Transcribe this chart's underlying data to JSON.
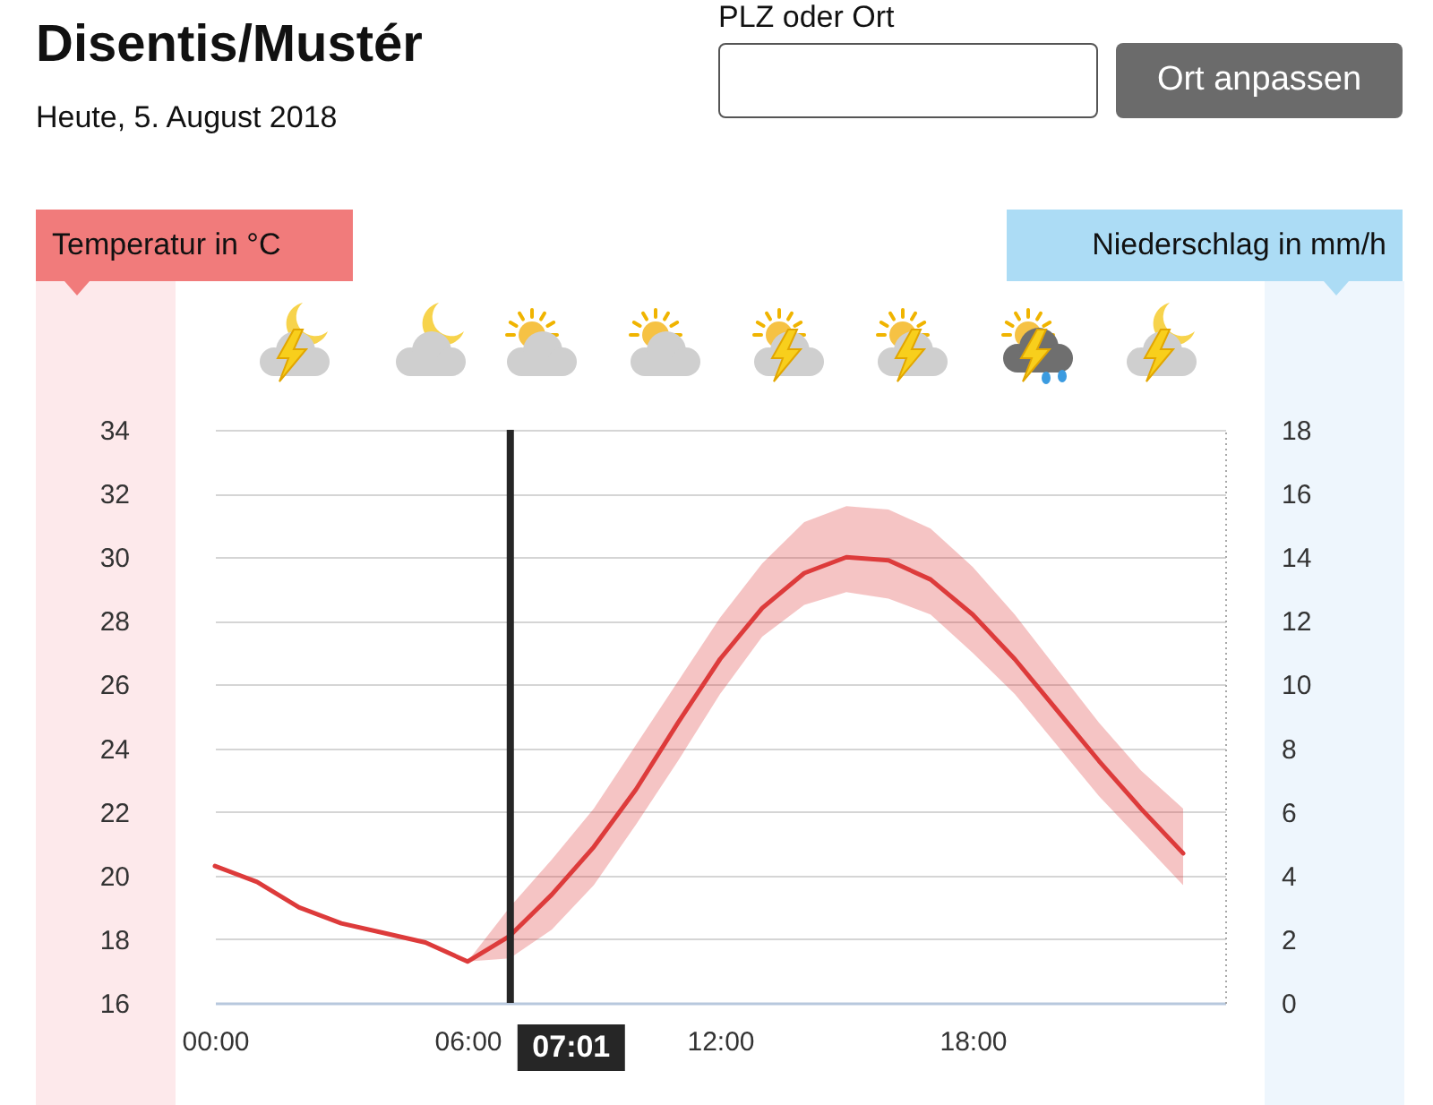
{
  "chart_data": {
    "type": "line",
    "title": "Disentis/Mustér",
    "subtitle": "Heute, 5. August 2018",
    "annotations": [
      "PLZ oder Ort",
      "Ort anpassen",
      "Temperatur in °C",
      "Niederschlag in mm/h"
    ],
    "x": [
      0,
      1,
      2,
      3,
      4,
      5,
      6,
      7,
      8,
      9,
      10,
      11,
      12,
      13,
      14,
      15,
      16,
      17,
      18,
      19,
      20,
      21,
      22,
      23
    ],
    "series": [
      {
        "color": "#dd3b3b",
        "values": [
          20.3,
          19.8,
          19.0,
          18.5,
          18.2,
          17.9,
          17.3,
          18.1,
          19.4,
          20.9,
          22.7,
          24.8,
          26.8,
          28.4,
          29.5,
          30.0,
          29.9,
          29.3,
          28.2,
          26.8,
          25.2,
          23.6,
          22.1,
          20.7
        ],
        "lower": [
          null,
          null,
          null,
          null,
          null,
          null,
          17.3,
          17.4,
          18.3,
          19.7,
          21.6,
          23.6,
          25.7,
          27.5,
          28.5,
          28.9,
          28.7,
          28.2,
          27.0,
          25.7,
          24.1,
          22.5,
          21.1,
          19.7
        ],
        "upper": [
          null,
          null,
          null,
          null,
          null,
          null,
          17.3,
          19.0,
          20.5,
          22.1,
          24.1,
          26.1,
          28.1,
          29.8,
          31.1,
          31.6,
          31.5,
          30.9,
          29.7,
          28.2,
          26.5,
          24.8,
          23.3,
          22.1
        ]
      }
    ],
    "xlim": [
      0,
      24
    ],
    "xticks": [
      {
        "value": 0,
        "label": "00:00"
      },
      {
        "value": 6,
        "label": "06:00"
      },
      {
        "value": 12,
        "label": "12:00"
      },
      {
        "value": 18,
        "label": "18:00"
      }
    ],
    "ylim": [
      16,
      34
    ],
    "yticks": [
      16,
      18,
      20,
      22,
      24,
      26,
      28,
      30,
      32,
      34
    ],
    "y2lim": [
      0,
      18
    ],
    "y2ticks": [
      0,
      2,
      4,
      6,
      8,
      10,
      12,
      14,
      16,
      18
    ],
    "ref_lines": [
      {
        "axis": "x",
        "value": 7.0167,
        "label": "07:01",
        "color": "#262626"
      }
    ],
    "grid": "y",
    "line_style": "solid"
  }
}
